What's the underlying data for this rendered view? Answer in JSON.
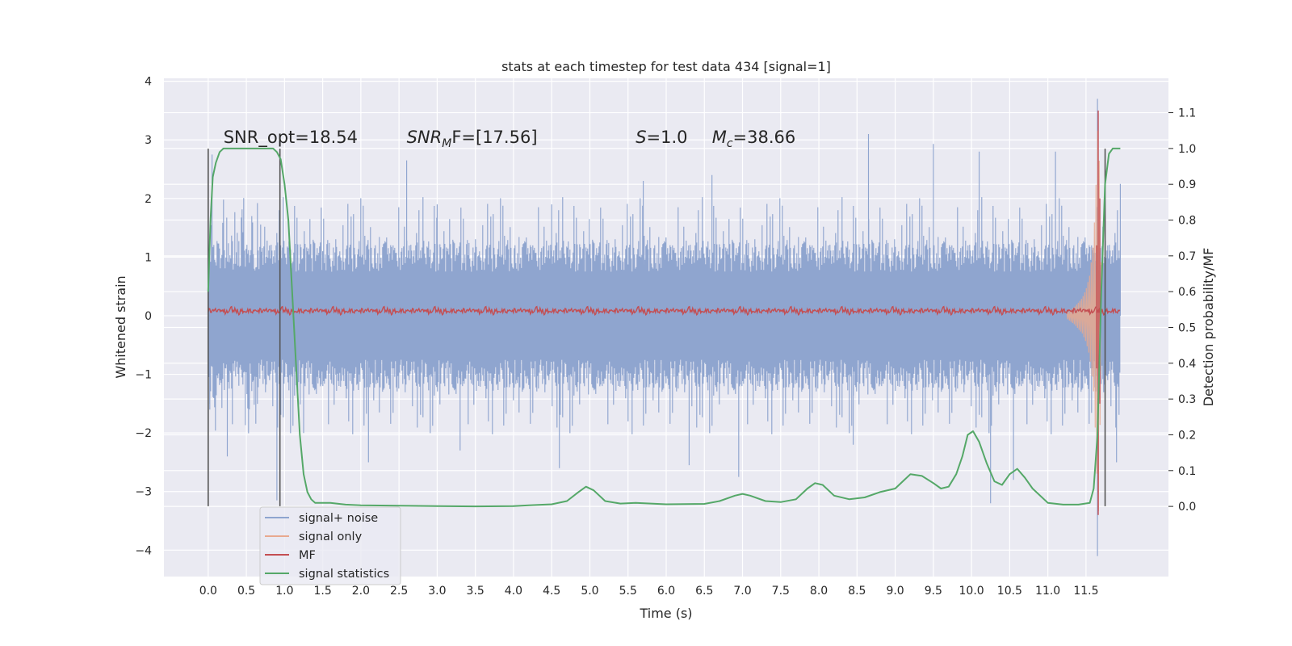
{
  "chart_data": {
    "type": "line",
    "title": "stats at each timestep for test data 434 [signal=1]",
    "xlabel": "Time (s)",
    "ylabel": "Whitened strain",
    "y2label": "Detection probability/MF",
    "xlim": [
      -0.58,
      12.58
    ],
    "ylim": [
      -4.45,
      4.05
    ],
    "y2lim": [
      -0.196,
      1.196
    ],
    "xticks": [
      0.0,
      0.5,
      1.0,
      1.5,
      2.0,
      2.5,
      3.0,
      3.5,
      4.0,
      4.5,
      5.0,
      5.5,
      6.0,
      6.5,
      7.0,
      7.5,
      8.0,
      8.5,
      9.0,
      9.5,
      10.0,
      10.5,
      11.0,
      11.5
    ],
    "xtick_labels": [
      "0.0",
      "0.5",
      "1.0",
      "1.5",
      "2.0",
      "2.5",
      "3.0",
      "3.5",
      "4.0",
      "4.5",
      "5.0",
      "5.5",
      "6.0",
      "6.5",
      "7.0",
      "7.5",
      "8.0",
      "8.5",
      "9.0",
      "9.5",
      "10.0",
      "10.5",
      "11.0",
      "11.5"
    ],
    "yticks": [
      4,
      3,
      2,
      1,
      0,
      -1,
      -2,
      -3,
      -4
    ],
    "ytick_labels": [
      "4",
      "3",
      "2",
      "1",
      "0",
      "−1",
      "−2",
      "−3",
      "−4"
    ],
    "y2ticks": [
      1.1,
      1.0,
      0.9,
      0.8,
      0.7,
      0.6,
      0.5,
      0.4,
      0.3,
      0.2,
      0.1,
      0.0
    ],
    "y2tick_labels": [
      "1.1",
      "1.0",
      "0.9",
      "0.8",
      "0.7",
      "0.6",
      "0.5",
      "0.4",
      "0.3",
      "0.2",
      "0.1",
      "0.0"
    ],
    "grid": true,
    "legend": {
      "placement": "lower-left",
      "entries": [
        {
          "label": "signal+ noise",
          "color": "#8fa5cf"
        },
        {
          "label": "signal only",
          "color": "#e8a98f"
        },
        {
          "label": "MF",
          "color": "#c44e52"
        },
        {
          "label": "signal statistics",
          "color": "#55a868"
        }
      ]
    },
    "annotations": {
      "snr_opt": "SNR_opt=18.54",
      "snr_mf_sym": "SNR",
      "snr_mf_sub": "M",
      "snr_mf_rest": "F=[17.56]",
      "s_sym": "S",
      "s_rest": "=1.0",
      "mc_sym": "M",
      "mc_sub": "c",
      "mc_rest": "=38.66",
      "y": 2.95
    },
    "series": [
      {
        "name": "signal+ noise",
        "color": "#8fa5cf",
        "x_range": [
          0.0,
          11.95
        ],
        "envelope": {
          "typical_upper": 1.0,
          "typical_lower": -1.0,
          "spike_upper": [
            [
              0.05,
              2.75
            ],
            [
              0.95,
              1.2
            ],
            [
              1.5,
              1.1
            ],
            [
              2.6,
              2.65
            ],
            [
              3.0,
              1.9
            ],
            [
              4.5,
              1.9
            ],
            [
              5.7,
              2.3
            ],
            [
              6.6,
              2.4
            ],
            [
              8.65,
              3.1
            ],
            [
              9.5,
              2.93
            ],
            [
              10.1,
              2.8
            ],
            [
              11.1,
              2.8
            ],
            [
              11.65,
              3.7
            ],
            [
              11.95,
              2.25
            ]
          ],
          "spike_lower": [
            [
              0.02,
              -1.5
            ],
            [
              0.25,
              -2.4
            ],
            [
              0.9,
              -3.15
            ],
            [
              1.25,
              -2.0
            ],
            [
              2.1,
              -2.5
            ],
            [
              3.3,
              -2.3
            ],
            [
              4.6,
              -2.6
            ],
            [
              6.3,
              -2.55
            ],
            [
              6.95,
              -2.75
            ],
            [
              8.45,
              -2.2
            ],
            [
              10.25,
              -3.2
            ],
            [
              10.55,
              -2.8
            ],
            [
              11.65,
              -4.1
            ],
            [
              11.9,
              -2.5
            ]
          ]
        }
      },
      {
        "name": "signal only",
        "color": "#e8a98f",
        "x": [
          11.25,
          11.35,
          11.45,
          11.5,
          11.55,
          11.6,
          11.63,
          11.66,
          11.68,
          11.7
        ],
        "amplitude": [
          0.05,
          0.15,
          0.3,
          0.45,
          0.7,
          1.3,
          2.2,
          3.5,
          2.2,
          0.4
        ]
      },
      {
        "name": "MF",
        "color": "#c44e52",
        "baseline": 0.08,
        "noise": 0.08,
        "peak": {
          "x": 11.66,
          "y_max": 3.5,
          "y_min": -3.4
        }
      },
      {
        "name": "signal statistics",
        "color": "#55a868",
        "axis": "right",
        "x": [
          0.0,
          0.03,
          0.06,
          0.1,
          0.15,
          0.2,
          0.3,
          0.5,
          0.7,
          0.85,
          0.9,
          0.95,
          1.0,
          1.05,
          1.1,
          1.15,
          1.2,
          1.25,
          1.3,
          1.35,
          1.4,
          1.5,
          1.6,
          1.8,
          2.0,
          2.5,
          3.0,
          3.5,
          4.0,
          4.2,
          4.5,
          4.7,
          4.85,
          4.95,
          5.05,
          5.2,
          5.4,
          5.6,
          5.8,
          6.0,
          6.5,
          6.7,
          6.9,
          7.0,
          7.1,
          7.3,
          7.5,
          7.7,
          7.85,
          7.95,
          8.05,
          8.2,
          8.4,
          8.6,
          8.8,
          9.0,
          9.1,
          9.2,
          9.35,
          9.5,
          9.6,
          9.7,
          9.8,
          9.88,
          9.95,
          10.02,
          10.1,
          10.2,
          10.3,
          10.4,
          10.5,
          10.6,
          10.7,
          10.8,
          11.0,
          11.2,
          11.4,
          11.55,
          11.6,
          11.65,
          11.7,
          11.75,
          11.8,
          11.85,
          11.9,
          11.95
        ],
        "values": [
          0.6,
          0.8,
          0.92,
          0.96,
          0.99,
          1.0,
          1.0,
          1.0,
          1.0,
          1.0,
          0.99,
          0.97,
          0.9,
          0.8,
          0.6,
          0.4,
          0.2,
          0.09,
          0.04,
          0.02,
          0.01,
          0.01,
          0.01,
          0.005,
          0.003,
          0.002,
          0.001,
          0.0,
          0.001,
          0.003,
          0.006,
          0.015,
          0.04,
          0.055,
          0.045,
          0.015,
          0.008,
          0.01,
          0.008,
          0.006,
          0.007,
          0.015,
          0.03,
          0.035,
          0.03,
          0.015,
          0.012,
          0.02,
          0.05,
          0.065,
          0.06,
          0.03,
          0.02,
          0.025,
          0.04,
          0.05,
          0.07,
          0.09,
          0.085,
          0.065,
          0.05,
          0.055,
          0.09,
          0.14,
          0.2,
          0.21,
          0.18,
          0.12,
          0.07,
          0.06,
          0.09,
          0.105,
          0.08,
          0.05,
          0.01,
          0.005,
          0.005,
          0.01,
          0.05,
          0.2,
          0.6,
          0.9,
          0.985,
          1.0,
          1.0,
          1.0
        ]
      }
    ],
    "vertical_lines": [
      {
        "x": 0.0,
        "y_range": [
          -3.25,
          2.85
        ],
        "color": "#555555"
      },
      {
        "x": 0.94,
        "y_range": [
          -3.25,
          2.85
        ],
        "color": "#555555"
      },
      {
        "x": 11.75,
        "y_range": [
          -3.25,
          2.85
        ],
        "color": "#555555"
      }
    ]
  }
}
